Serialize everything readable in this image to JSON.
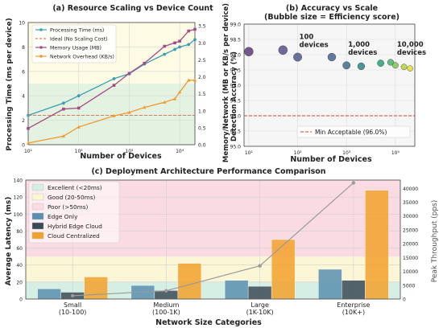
{
  "chart_data": [
    {
      "id": "a",
      "type": "line",
      "title": "(a) Resource Scaling vs Device Count",
      "xlabel": "Number of Devices",
      "ylabel_left": "Processing Time (ms per device)",
      "ylabel_right": "Memory/Network (MB or KB/s per device)",
      "x_scale": "log",
      "xlim": [
        10,
        20000
      ],
      "ylim_left": [
        0,
        10
      ],
      "ylim_right": [
        0,
        3.6
      ],
      "x_ticks": [
        "10¹",
        "10²",
        "10³",
        "10⁴"
      ],
      "y_ticks_left": [
        "0",
        "2",
        "4",
        "6",
        "8",
        "10"
      ],
      "y_ticks_right": [
        "0.0",
        "0.5",
        "1.0",
        "1.5",
        "2.0",
        "2.5",
        "3.0",
        "3.5"
      ],
      "bands": [
        {
          "from": 0,
          "to": 5,
          "color": "#e3f2e1"
        },
        {
          "from": 5,
          "to": 10,
          "color": "#fdfbe3"
        }
      ],
      "x": [
        10,
        50,
        100,
        500,
        1000,
        2000,
        5000,
        8000,
        10000,
        15000,
        20000
      ],
      "series": [
        {
          "name": "Processing Time (ms)",
          "axis": "left",
          "color": "#3a9fb3",
          "marker": "circle",
          "values": [
            2.4,
            3.4,
            4.0,
            5.4,
            5.8,
            6.6,
            7.4,
            7.8,
            8.0,
            8.2,
            8.6
          ]
        },
        {
          "name": "Ideal (No Scaling Cost)",
          "axis": "left",
          "color": "#e07a5f",
          "dashed": true,
          "values": [
            2.4,
            2.4,
            2.4,
            2.4,
            2.4,
            2.4,
            2.4,
            2.4,
            2.4,
            2.4,
            2.4
          ]
        },
        {
          "name": "Memory Usage (MB)",
          "axis": "right",
          "color": "#a24b86",
          "marker": "square",
          "values": [
            0.48,
            1.05,
            1.08,
            1.75,
            2.1,
            2.4,
            2.9,
            3.0,
            3.05,
            3.35,
            3.4
          ]
        },
        {
          "name": "Network Overhead (KB/s)",
          "axis": "right",
          "color": "#f29a2e",
          "marker": "triangle",
          "values": [
            0.05,
            0.25,
            0.52,
            0.85,
            0.95,
            1.1,
            1.25,
            1.35,
            1.55,
            1.9,
            1.9
          ]
        }
      ],
      "legend_position": "top-left"
    },
    {
      "id": "b",
      "type": "scatter",
      "title": "(b) Accuracy vs Scale",
      "subtitle": "(Bubble size = Efficiency score)",
      "xlabel": "Number of Devices",
      "ylabel": "Detection Accuracy (%)",
      "x_scale": "log",
      "xlim": [
        8,
        25000
      ],
      "ylim": [
        95.0,
        99.0
      ],
      "x_ticks": [
        "10¹",
        "10²",
        "10³",
        "10⁴"
      ],
      "y_ticks": [
        "95.0",
        "95.5",
        "96.0",
        "96.5",
        "97.0",
        "97.5",
        "98.0",
        "98.5",
        "99.0"
      ],
      "points": [
        {
          "x": 10,
          "y": 98.1,
          "color": "#5d3b7d",
          "size": 1.0
        },
        {
          "x": 50,
          "y": 98.15,
          "color": "#5b4f8a",
          "size": 1.0
        },
        {
          "x": 100,
          "y": 97.92,
          "color": "#51588e",
          "size": 0.95
        },
        {
          "x": 500,
          "y": 97.92,
          "color": "#45638d",
          "size": 0.9
        },
        {
          "x": 1000,
          "y": 97.65,
          "color": "#3b7089",
          "size": 0.85
        },
        {
          "x": 2000,
          "y": 97.62,
          "color": "#2f8386",
          "size": 0.8
        },
        {
          "x": 5000,
          "y": 97.72,
          "color": "#24a07a",
          "size": 0.75
        },
        {
          "x": 8000,
          "y": 97.75,
          "color": "#49b46b",
          "size": 0.7
        },
        {
          "x": 10000,
          "y": 97.65,
          "color": "#7bc653",
          "size": 0.68
        },
        {
          "x": 15000,
          "y": 97.6,
          "color": "#b3d43b",
          "size": 0.66
        },
        {
          "x": 20000,
          "y": 97.55,
          "color": "#e8dc2e",
          "size": 0.64
        }
      ],
      "annotations": [
        {
          "text": "100 devices",
          "x": 100,
          "y": 98.2
        },
        {
          "text": "1,000 devices",
          "x": 1000,
          "y": 97.95
        },
        {
          "text": "10,000 devices",
          "x": 10000,
          "y": 97.95
        }
      ],
      "reference_line": {
        "y": 96.0,
        "color": "#e53935",
        "label": "Min Acceptable (96.0%)"
      },
      "legend_position": "lower-right"
    },
    {
      "id": "c",
      "type": "bar",
      "title": "(c) Deployment Architecture Performance Comparison",
      "xlabel": "Network Size Categories",
      "ylabel_left": "Average Latency (ms)",
      "ylabel_right": "Peak Throughput (pps)",
      "categories": [
        "Small\n(10-100)",
        "Medium\n(100-1K)",
        "Large\n(1K-10K)",
        "Enterprise\n(10K+)"
      ],
      "ylim_left": [
        0,
        140
      ],
      "ylim_right": [
        0,
        43000
      ],
      "y_ticks_left": [
        "0",
        "20",
        "40",
        "60",
        "80",
        "100",
        "120",
        "140"
      ],
      "y_ticks_right": [
        "0",
        "5000",
        "10000",
        "15000",
        "20000",
        "25000",
        "30000",
        "35000",
        "40000"
      ],
      "bands": [
        {
          "name": "Excellent (<20ms)",
          "from": 0,
          "to": 20,
          "color": "#d6efe4"
        },
        {
          "name": "Good (20-50ms)",
          "from": 20,
          "to": 50,
          "color": "#fbf6d6"
        },
        {
          "name": "Poor (>50ms)",
          "from": 50,
          "to": 140,
          "color": "#fadbe3"
        }
      ],
      "series": [
        {
          "name": "Edge Only",
          "color": "#5a8fb0",
          "values": [
            12,
            16,
            22,
            35
          ]
        },
        {
          "name": "Hybrid Edge Cloud",
          "color": "#3b4a56",
          "values": [
            8,
            10,
            15,
            22
          ]
        },
        {
          "name": "Cloud Centralized",
          "color": "#f2a12b",
          "values": [
            26,
            42,
            70,
            128
          ]
        }
      ],
      "throughput": {
        "color": "#9a9a9a",
        "values": [
          1200,
          3000,
          12000,
          42000
        ]
      },
      "legend_position": "upper-left"
    }
  ]
}
